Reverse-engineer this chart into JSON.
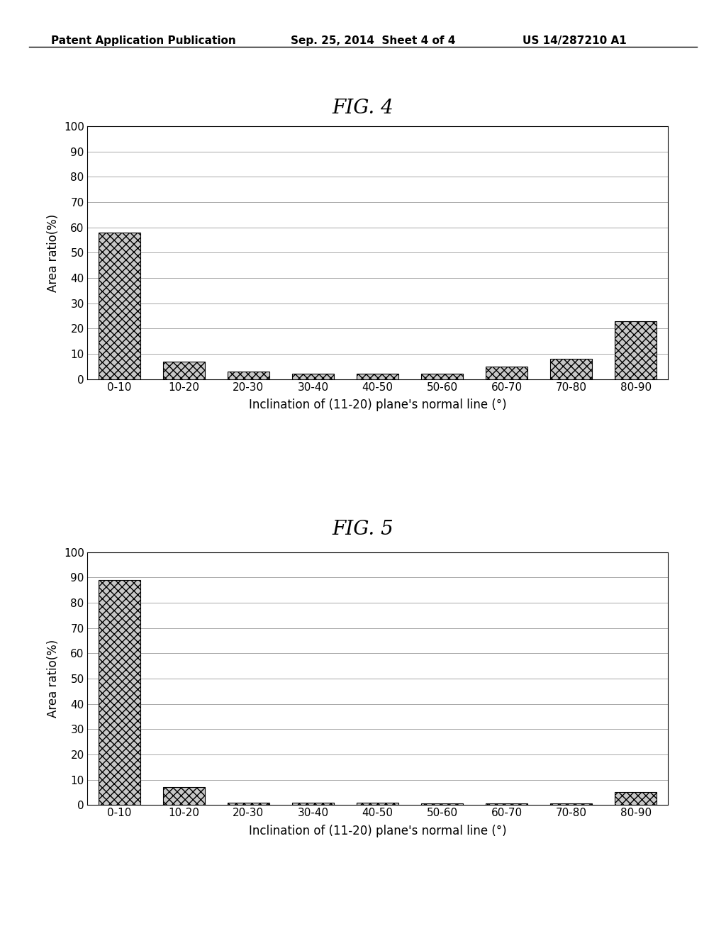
{
  "fig4": {
    "title": "FIG. 4",
    "categories": [
      "0-10",
      "10-20",
      "20-30",
      "30-40",
      "40-50",
      "50-60",
      "60-70",
      "70-80",
      "80-90"
    ],
    "values": [
      58,
      7,
      3,
      2,
      2,
      2,
      5,
      8,
      23
    ],
    "ylabel": "Area ratio(%)",
    "xlabel": "Inclination of (11-20) plane's normal line (°)",
    "ylim": [
      0,
      100
    ],
    "yticks": [
      0,
      10,
      20,
      30,
      40,
      50,
      60,
      70,
      80,
      90,
      100
    ]
  },
  "fig5": {
    "title": "FIG. 5",
    "categories": [
      "0-10",
      "10-20",
      "20-30",
      "30-40",
      "40-50",
      "50-60",
      "60-70",
      "70-80",
      "80-90"
    ],
    "values": [
      89,
      7,
      1,
      1,
      1,
      0.5,
      0.5,
      0.5,
      5
    ],
    "ylabel": "Area ratio(%)",
    "xlabel": "Inclination of (11-20) plane's normal line (°)",
    "ylim": [
      0,
      100
    ],
    "yticks": [
      0,
      10,
      20,
      30,
      40,
      50,
      60,
      70,
      80,
      90,
      100
    ]
  },
  "header_left": "Patent Application Publication",
  "header_center": "Sep. 25, 2014  Sheet 4 of 4",
  "header_right": "US 14/287210 A1",
  "bar_color": "#c8c8c8",
  "bar_hatch": "xxx",
  "background_color": "#ffffff",
  "grid_color": "#999999",
  "font_size_title": 20,
  "font_size_axis_label": 12,
  "font_size_tick": 11,
  "font_size_header": 11
}
